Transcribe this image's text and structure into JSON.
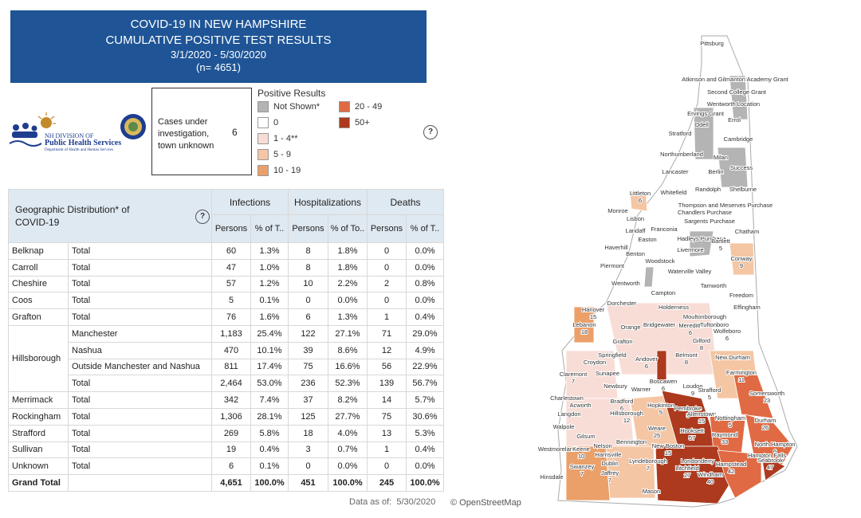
{
  "header": {
    "title_lines": [
      "COVID-19 IN NEW HAMPSHIRE",
      "CUMULATIVE POSITIVE TEST RESULTS"
    ],
    "date_range": "3/1/2020 - 5/30/2020",
    "n": "(n= 4651)"
  },
  "logo": {
    "line1": "NH DIVISION OF",
    "line2": "Public Health Services",
    "line3": "Department of Health and Human Services"
  },
  "unknown_box": {
    "label": "Cases under investigation, town unknown",
    "value": 6
  },
  "help": "?",
  "legend": {
    "title": "Positive Results",
    "items": [
      {
        "label": "Not Shown*",
        "color": "#b4b4b4"
      },
      {
        "label": "0",
        "color": "#ffffff"
      },
      {
        "label": "1 - 4**",
        "color": "#f8ddd6"
      },
      {
        "label": "5 - 9",
        "color": "#f4c6a4"
      },
      {
        "label": "10 - 19",
        "color": "#eba06a"
      },
      {
        "label": "20 - 49",
        "color": "#e06a43"
      },
      {
        "label": "50+",
        "color": "#ad3a1e"
      }
    ]
  },
  "table": {
    "title": "Geographic Distribution* of COVID-19",
    "groups": [
      "Infections",
      "Hospitalizations",
      "Deaths"
    ],
    "subheaders": [
      "Persons",
      "% of T..",
      "Persons",
      "% of To..",
      "Persons",
      "% of T.."
    ],
    "rows": [
      {
        "county": "Belknap",
        "lines": [
          {
            "sub": "Total",
            "cells": [
              "60",
              "1.3%",
              "8",
              "1.8%",
              "0",
              "0.0%"
            ]
          }
        ]
      },
      {
        "county": "Carroll",
        "lines": [
          {
            "sub": "Total",
            "cells": [
              "47",
              "1.0%",
              "8",
              "1.8%",
              "0",
              "0.0%"
            ]
          }
        ]
      },
      {
        "county": "Cheshire",
        "lines": [
          {
            "sub": "Total",
            "cells": [
              "57",
              "1.2%",
              "10",
              "2.2%",
              "2",
              "0.8%"
            ]
          }
        ]
      },
      {
        "county": "Coos",
        "lines": [
          {
            "sub": "Total",
            "cells": [
              "5",
              "0.1%",
              "0",
              "0.0%",
              "0",
              "0.0%"
            ]
          }
        ]
      },
      {
        "county": "Grafton",
        "lines": [
          {
            "sub": "Total",
            "cells": [
              "76",
              "1.6%",
              "6",
              "1.3%",
              "1",
              "0.4%"
            ]
          }
        ]
      },
      {
        "county": "Hillsborough",
        "lines": [
          {
            "sub": "Manchester",
            "cells": [
              "1,183",
              "25.4%",
              "122",
              "27.1%",
              "71",
              "29.0%"
            ]
          },
          {
            "sub": "Nashua",
            "cells": [
              "470",
              "10.1%",
              "39",
              "8.6%",
              "12",
              "4.9%"
            ]
          },
          {
            "sub": "Outside Manchester and Nashua",
            "cells": [
              "811",
              "17.4%",
              "75",
              "16.6%",
              "56",
              "22.9%"
            ]
          },
          {
            "sub": "Total",
            "cells": [
              "2,464",
              "53.0%",
              "236",
              "52.3%",
              "139",
              "56.7%"
            ]
          }
        ]
      },
      {
        "county": "Merrimack",
        "lines": [
          {
            "sub": "Total",
            "cells": [
              "342",
              "7.4%",
              "37",
              "8.2%",
              "14",
              "5.7%"
            ]
          }
        ]
      },
      {
        "county": "Rockingham",
        "lines": [
          {
            "sub": "Total",
            "cells": [
              "1,306",
              "28.1%",
              "125",
              "27.7%",
              "75",
              "30.6%"
            ]
          }
        ]
      },
      {
        "county": "Strafford",
        "lines": [
          {
            "sub": "Total",
            "cells": [
              "269",
              "5.8%",
              "18",
              "4.0%",
              "13",
              "5.3%"
            ]
          }
        ]
      },
      {
        "county": "Sullivan",
        "lines": [
          {
            "sub": "Total",
            "cells": [
              "19",
              "0.4%",
              "3",
              "0.7%",
              "1",
              "0.4%"
            ]
          }
        ]
      },
      {
        "county": "Unknown",
        "lines": [
          {
            "sub": "Total",
            "cells": [
              "6",
              "0.1%",
              "0",
              "0.0%",
              "0",
              "0.0%"
            ]
          }
        ]
      },
      {
        "county": "Grand Total",
        "lines": [
          {
            "cells": [
              "4,651",
              "100.0%",
              "451",
              "100.0%",
              "245",
              "100.0%"
            ]
          }
        ]
      }
    ]
  },
  "footer": {
    "data_as_of_label": "Data as of:",
    "data_as_of_date": "5/30/2020",
    "attribution": "© OpenStreetMap"
  },
  "map": {
    "towns": [
      {
        "name": "Pittsburg"
      },
      {
        "name": "Atkinson and Gilmanton Academy Grant"
      },
      {
        "name": "Second College Grant"
      },
      {
        "name": "Wentworth Location"
      },
      {
        "name": "Ervings Grant"
      },
      {
        "name": "Errol"
      },
      {
        "name": "Odell"
      },
      {
        "name": "Stratford"
      },
      {
        "name": "Cambridge"
      },
      {
        "name": "Northumberland"
      },
      {
        "name": "Milan"
      },
      {
        "name": "Lancaster"
      },
      {
        "name": "Berlin"
      },
      {
        "name": "Success"
      },
      {
        "name": "Littleton",
        "count": 6
      },
      {
        "name": "Whitefield"
      },
      {
        "name": "Randolph"
      },
      {
        "name": "Shelburne"
      },
      {
        "name": "Thompson and Meserves Purchase"
      },
      {
        "name": "Chandlers Purchase"
      },
      {
        "name": "Sargents Purchase"
      },
      {
        "name": "Monroe"
      },
      {
        "name": "Lisbon"
      },
      {
        "name": "Franconia"
      },
      {
        "name": "Landaff"
      },
      {
        "name": "Easton"
      },
      {
        "name": "Hadleys Purchase"
      },
      {
        "name": "Bartlett",
        "count": 5
      },
      {
        "name": "Chatham"
      },
      {
        "name": "Livermore"
      },
      {
        "name": "Haverhill"
      },
      {
        "name": "Benton"
      },
      {
        "name": "Woodstock"
      },
      {
        "name": "Conway",
        "count": 9
      },
      {
        "name": "Piermont"
      },
      {
        "name": "Waterville Valley"
      },
      {
        "name": "Wentworth"
      },
      {
        "name": "Tamworth"
      },
      {
        "name": "Campton"
      },
      {
        "name": "Freedom"
      },
      {
        "name": "Dorchester"
      },
      {
        "name": "Effingham"
      },
      {
        "name": "Holderness"
      },
      {
        "name": "Hanover",
        "count": 15
      },
      {
        "name": "Moultonborough"
      },
      {
        "name": "Lebanon",
        "count": 18
      },
      {
        "name": "Orange"
      },
      {
        "name": "Bridgewater"
      },
      {
        "name": "Meredith",
        "count": 6
      },
      {
        "name": "Tuftonboro"
      },
      {
        "name": "Wolfeboro",
        "count": 6
      },
      {
        "name": "Grafton"
      },
      {
        "name": "Gilford",
        "count": 8
      },
      {
        "name": "Belmont",
        "count": 8
      },
      {
        "name": "Springfield"
      },
      {
        "name": "Croydon"
      },
      {
        "name": "Andover",
        "count": 6
      },
      {
        "name": "New Durham"
      },
      {
        "name": "Claremont",
        "count": 7
      },
      {
        "name": "Sunapee"
      },
      {
        "name": "Farmington",
        "count": 11
      },
      {
        "name": "Boscawen",
        "count": 6
      },
      {
        "name": "Newbury"
      },
      {
        "name": "Loudon",
        "count": 9
      },
      {
        "name": "Strafford",
        "count": 5
      },
      {
        "name": "Warner"
      },
      {
        "name": "Somersworth",
        "count": 23
      },
      {
        "name": "Charlestown"
      },
      {
        "name": "Acworth"
      },
      {
        "name": "Bradford",
        "count": 6
      },
      {
        "name": "Hopkinton",
        "count": 5
      },
      {
        "name": "Pembroke",
        "count": 5
      },
      {
        "name": "Allenstown",
        "count": 15
      },
      {
        "name": "Langdon"
      },
      {
        "name": "Nottingham",
        "count": 5
      },
      {
        "name": "Hillsborough",
        "count": 12
      },
      {
        "name": "Durham",
        "count": 26
      },
      {
        "name": "Walpole"
      },
      {
        "name": "Weare",
        "count": 25
      },
      {
        "name": "Hooksett",
        "count": 57
      },
      {
        "name": "Raymond",
        "count": 33
      },
      {
        "name": "Gilsum"
      },
      {
        "name": "Bennington"
      },
      {
        "name": "North Hampton",
        "count": 6
      },
      {
        "name": "Nelson"
      },
      {
        "name": "Westmoreland"
      },
      {
        "name": "Keene",
        "count": 10
      },
      {
        "name": "New Boston",
        "count": 15
      },
      {
        "name": "Hampton Falls"
      },
      {
        "name": "Harrisville"
      },
      {
        "name": "Seabrook",
        "count": 47
      },
      {
        "name": "Londonderry"
      },
      {
        "name": "Lyndeborough",
        "count": 7
      },
      {
        "name": "Hampstead",
        "count": 42
      },
      {
        "name": "Dublin"
      },
      {
        "name": "Swanzey",
        "count": 7
      },
      {
        "name": "Jaffrey",
        "count": 7
      },
      {
        "name": "Litchfield",
        "count": 27
      },
      {
        "name": "Windham",
        "count": 40
      },
      {
        "name": "Hinsdale"
      },
      {
        "name": "Mason"
      }
    ]
  }
}
